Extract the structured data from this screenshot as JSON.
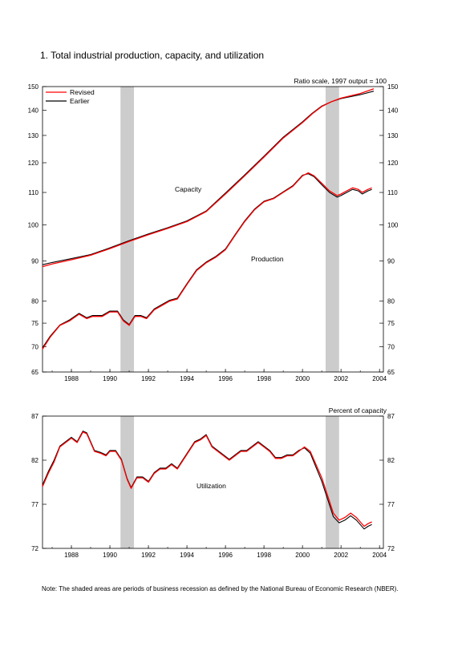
{
  "title": "1. Total industrial production, capacity, and utilization",
  "note": "Note: The shaded areas are periods of business recession as defined by the National Bureau of Economic Research (NBER).",
  "colors": {
    "revised": "#ff0000",
    "earlier": "#000000",
    "recession": "#cccccc"
  },
  "chart_data": [
    {
      "type": "line",
      "scale": "log",
      "subtitle": "Ratio scale, 1997 output = 100",
      "xlim": [
        1986.5,
        2004.2
      ],
      "ylim": [
        65,
        150
      ],
      "x_ticks": [
        1988,
        1990,
        1992,
        1994,
        1996,
        1998,
        2000,
        2002,
        2004
      ],
      "x_tick_labels": [
        "1988",
        "1990",
        "1992",
        "1994",
        "1996",
        "1998",
        "2000",
        "2002",
        "2004"
      ],
      "y_ticks": [
        65,
        70,
        75,
        80,
        90,
        100,
        110,
        120,
        130,
        140,
        150
      ],
      "y_tick_labels": [
        "65",
        "70",
        "75",
        "80",
        "90",
        "100",
        "110",
        "120",
        "130",
        "140",
        "150"
      ],
      "recessions": [
        [
          1990.55,
          1991.25
        ],
        [
          2001.2,
          2001.9
        ]
      ],
      "legend": {
        "position": "top-left",
        "entries": [
          "Revised",
          "Earlier"
        ]
      },
      "annotations": [
        "Capacity",
        "Production"
      ],
      "series": [
        {
          "name": "Capacity",
          "label": "Capacity",
          "revised": {
            "x": [
              1986.5,
              1987,
              1988,
              1989,
              1990,
              1990.5,
              1991,
              1992,
              1993,
              1994,
              1995,
              1996,
              1997,
              1998,
              1999,
              2000,
              2000.5,
              2001,
              2001.5,
              2002,
              2003,
              2003.7
            ],
            "y": [
              88.5,
              89.2,
              90.3,
              91.5,
              93.3,
              94.3,
              95.3,
              97.2,
              99.0,
              101.0,
              104.0,
              109.5,
              115.5,
              122.0,
              129.0,
              135.0,
              138.5,
              141.5,
              143.5,
              145.0,
              147.0,
              149.0
            ]
          },
          "earlier": {
            "x": [
              1986.5,
              1987,
              1988,
              1989,
              1990,
              1990.5,
              1991,
              1992,
              1993,
              1994,
              1995,
              1996,
              1997,
              1998,
              1999,
              2000,
              2000.5,
              2001,
              2001.5,
              2002,
              2003,
              2003.7
            ],
            "y": [
              89.0,
              89.6,
              90.6,
              91.7,
              93.5,
              94.5,
              95.5,
              97.4,
              99.2,
              101.2,
              104.2,
              109.8,
              115.8,
              122.3,
              129.3,
              135.3,
              138.7,
              141.7,
              143.5,
              144.8,
              146.5,
              148.0
            ]
          }
        },
        {
          "name": "Production",
          "label": "Production",
          "revised": {
            "x": [
              1986.5,
              1986.9,
              1987.4,
              1987.9,
              1988.4,
              1988.8,
              1989.1,
              1989.6,
              1990.0,
              1990.4,
              1990.7,
              1991.0,
              1991.3,
              1991.6,
              1991.9,
              1992.3,
              1992.7,
              1993.1,
              1993.5,
              1994.0,
              1994.5,
              1995.0,
              1995.5,
              1996.0,
              1996.5,
              1997.0,
              1997.5,
              1998.0,
              1998.5,
              1999.0,
              1999.5,
              2000.0,
              2000.3,
              2000.6,
              2001.0,
              2001.4,
              2001.8,
              2002.0,
              2002.3,
              2002.6,
              2002.9,
              2003.1,
              2003.4,
              2003.6
            ],
            "y": [
              69.5,
              72.0,
              74.5,
              75.5,
              77.0,
              76.0,
              76.5,
              76.5,
              77.5,
              77.5,
              75.5,
              74.5,
              76.5,
              76.5,
              76.0,
              78.0,
              79.0,
              80.0,
              80.5,
              84.0,
              87.5,
              89.5,
              91.0,
              93.0,
              97.0,
              101.0,
              104.5,
              107.0,
              108.0,
              110.0,
              112.0,
              115.5,
              116.5,
              115.5,
              113.0,
              110.5,
              109.0,
              109.5,
              110.5,
              111.5,
              111.0,
              110.0,
              111.0,
              111.5
            ]
          },
          "earlier": {
            "x": [
              1986.5,
              1986.9,
              1987.4,
              1987.9,
              1988.4,
              1988.8,
              1989.1,
              1989.6,
              1990.0,
              1990.4,
              1990.7,
              1991.0,
              1991.3,
              1991.6,
              1991.9,
              1992.3,
              1992.7,
              1993.1,
              1993.5,
              1994.0,
              1994.5,
              1995.0,
              1995.5,
              1996.0,
              1996.5,
              1997.0,
              1997.5,
              1998.0,
              1998.5,
              1999.0,
              1999.5,
              2000.0,
              2000.3,
              2000.6,
              2001.0,
              2001.4,
              2001.8,
              2002.0,
              2002.3,
              2002.6,
              2002.9,
              2003.1,
              2003.4,
              2003.6
            ],
            "y": [
              69.8,
              72.2,
              74.6,
              75.7,
              77.2,
              76.2,
              76.7,
              76.7,
              77.7,
              77.7,
              75.7,
              74.7,
              76.7,
              76.7,
              76.2,
              78.2,
              79.2,
              80.2,
              80.7,
              84.2,
              87.7,
              89.7,
              91.2,
              93.2,
              97.2,
              101.2,
              104.7,
              107.2,
              108.2,
              110.2,
              112.2,
              115.7,
              116.2,
              115.2,
              112.5,
              110.0,
              108.5,
              109.0,
              110.0,
              111.0,
              110.5,
              109.5,
              110.5,
              111.0
            ]
          }
        }
      ]
    },
    {
      "type": "line",
      "scale": "linear",
      "subtitle": "Percent of capacity",
      "xlim": [
        1986.5,
        2004.2
      ],
      "ylim": [
        72,
        87
      ],
      "x_ticks": [
        1988,
        1990,
        1992,
        1994,
        1996,
        1998,
        2000,
        2002,
        2004
      ],
      "x_tick_labels": [
        "1988",
        "1990",
        "1992",
        "1994",
        "1996",
        "1998",
        "2000",
        "2002",
        "2004"
      ],
      "y_ticks": [
        72,
        77,
        82,
        87
      ],
      "y_tick_labels": [
        "72",
        "77",
        "82",
        "87"
      ],
      "recessions": [
        [
          1990.55,
          1991.25
        ],
        [
          2001.2,
          2001.9
        ]
      ],
      "annotations": [
        "Utilization"
      ],
      "series": [
        {
          "name": "Utilization",
          "label": "Utilization",
          "revised": {
            "x": [
              1986.5,
              1986.8,
              1987.1,
              1987.4,
              1987.7,
              1988.0,
              1988.3,
              1988.6,
              1988.8,
              1989.0,
              1989.2,
              1989.5,
              1989.8,
              1990.0,
              1990.3,
              1990.6,
              1990.9,
              1991.1,
              1991.4,
              1991.7,
              1992.0,
              1992.3,
              1992.6,
              1992.9,
              1993.2,
              1993.5,
              1993.8,
              1994.1,
              1994.4,
              1994.7,
              1995.0,
              1995.3,
              1995.6,
              1995.9,
              1996.2,
              1996.5,
              1996.8,
              1997.1,
              1997.4,
              1997.7,
              1998.0,
              1998.3,
              1998.6,
              1998.9,
              1999.2,
              1999.5,
              1999.8,
              2000.1,
              2000.4,
              2000.7,
              2001.0,
              2001.3,
              2001.6,
              2001.9,
              2002.2,
              2002.5,
              2002.8,
              2003.0,
              2003.2,
              2003.4,
              2003.6
            ],
            "y": [
              79.0,
              80.5,
              81.8,
              83.5,
              84.0,
              84.5,
              84.0,
              85.2,
              85.0,
              84.0,
              83.0,
              82.8,
              82.5,
              83.0,
              83.0,
              82.0,
              79.8,
              78.8,
              80.0,
              80.0,
              79.5,
              80.5,
              81.0,
              81.0,
              81.5,
              81.0,
              82.0,
              83.0,
              84.0,
              84.3,
              84.8,
              83.5,
              83.0,
              82.5,
              82.0,
              82.5,
              83.0,
              83.0,
              83.5,
              84.0,
              83.5,
              83.0,
              82.2,
              82.2,
              82.5,
              82.5,
              83.0,
              83.5,
              83.0,
              81.5,
              80.0,
              78.0,
              76.0,
              75.2,
              75.5,
              76.0,
              75.5,
              75.0,
              74.5,
              74.8,
              75.0
            ]
          },
          "earlier": {
            "x": [
              1986.5,
              1986.8,
              1987.1,
              1987.4,
              1987.7,
              1988.0,
              1988.3,
              1988.6,
              1988.8,
              1989.0,
              1989.2,
              1989.5,
              1989.8,
              1990.0,
              1990.3,
              1990.6,
              1990.9,
              1991.1,
              1991.4,
              1991.7,
              1992.0,
              1992.3,
              1992.6,
              1992.9,
              1993.2,
              1993.5,
              1993.8,
              1994.1,
              1994.4,
              1994.7,
              1995.0,
              1995.3,
              1995.6,
              1995.9,
              1996.2,
              1996.5,
              1996.8,
              1997.1,
              1997.4,
              1997.7,
              1998.0,
              1998.3,
              1998.6,
              1998.9,
              1999.2,
              1999.5,
              1999.8,
              2000.1,
              2000.4,
              2000.7,
              2001.0,
              2001.3,
              2001.6,
              2001.9,
              2002.2,
              2002.5,
              2002.8,
              2003.0,
              2003.2,
              2003.4,
              2003.6
            ],
            "y": [
              79.2,
              80.7,
              82.0,
              83.6,
              84.1,
              84.6,
              84.1,
              85.3,
              85.1,
              84.1,
              83.1,
              82.9,
              82.6,
              83.1,
              83.1,
              82.1,
              79.9,
              78.9,
              80.1,
              80.1,
              79.6,
              80.6,
              81.1,
              81.1,
              81.6,
              81.1,
              82.1,
              83.1,
              84.1,
              84.4,
              84.9,
              83.6,
              83.1,
              82.6,
              82.1,
              82.6,
              83.1,
              83.1,
              83.6,
              84.1,
              83.6,
              83.1,
              82.3,
              82.3,
              82.6,
              82.6,
              83.1,
              83.4,
              82.8,
              81.2,
              79.6,
              77.6,
              75.6,
              74.9,
              75.2,
              75.7,
              75.2,
              74.7,
              74.2,
              74.5,
              74.7
            ]
          }
        }
      ]
    }
  ]
}
